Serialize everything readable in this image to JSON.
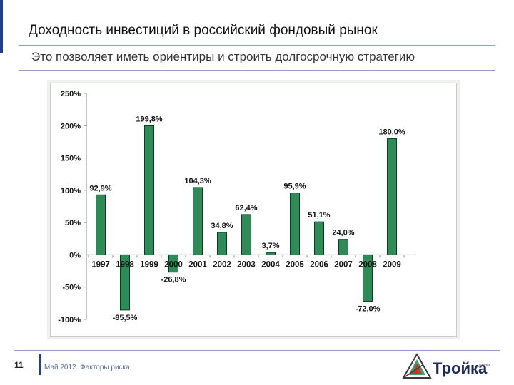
{
  "header": {
    "title": "Доходность инвестиций в российский фондовый рынок",
    "subtitle": "Это позволяет иметь ориентиры и строить долгосрочную стратегию"
  },
  "footer": {
    "page_number": "11",
    "caption": "Май 2012. Факторы риска.",
    "logo_text": "Тройка",
    "logo_tagline": "Диалог"
  },
  "colors": {
    "bar": "#2e8b57",
    "bar_stroke": "#0e3a22",
    "accent": "#1f3f8a"
  },
  "chart_data": {
    "type": "bar",
    "categories": [
      "1997",
      "1998",
      "1999",
      "2000",
      "2001",
      "2002",
      "2003",
      "2004",
      "2005",
      "2006",
      "2007",
      "2008",
      "2009"
    ],
    "values": [
      92.9,
      -85.5,
      199.8,
      -26.8,
      104.3,
      34.8,
      62.4,
      3.7,
      95.9,
      51.1,
      24.0,
      -72.0,
      180.0
    ],
    "value_labels": [
      "92,9%",
      "-85,5%",
      "199,8%",
      "-26,8%",
      "104,3%",
      "34,8%",
      "62,4%",
      "3,7%",
      "95,9%",
      "51,1%",
      "24,0%",
      "-72,0%",
      "180,0%"
    ],
    "y_ticks": [
      250,
      200,
      150,
      100,
      50,
      0,
      -50,
      -100
    ],
    "y_tick_labels": [
      "250%",
      "200%",
      "150%",
      "100%",
      "50%",
      "0%",
      "-50%",
      "-100%"
    ],
    "ylim": [
      -100,
      250
    ],
    "title": "",
    "xlabel": "",
    "ylabel": "",
    "grid": false,
    "legend": "none"
  }
}
